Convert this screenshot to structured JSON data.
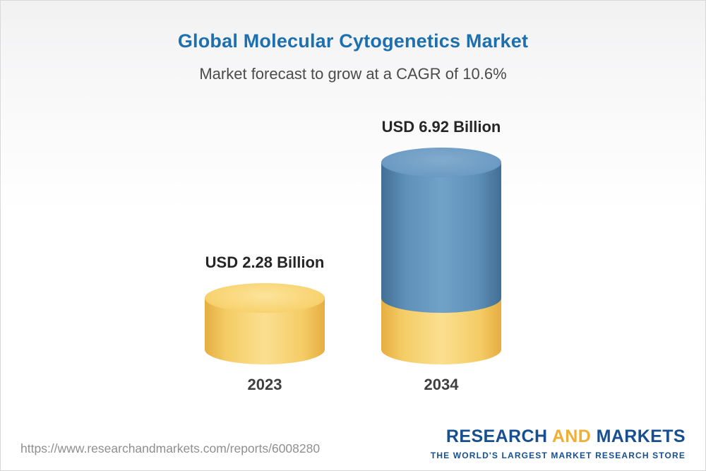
{
  "colors": {
    "title_blue": "#1d6fae",
    "bar_yellow": "#f4cc65",
    "bar_blue": "#5e90b8",
    "logo_blue": "#174f8f",
    "logo_gold": "#efaf36"
  },
  "chart_data": {
    "type": "bar",
    "variant": "3d-cylinder",
    "title": "Global Molecular Cytogenetics Market",
    "subtitle": "Market forecast to grow at a CAGR of 10.6%",
    "cagr_percent": 10.6,
    "unit": "USD Billion",
    "categories": [
      "2023",
      "2034"
    ],
    "values": [
      2.28,
      6.92
    ],
    "value_labels": [
      "USD 2.28 Billion",
      "USD 6.92 Billion"
    ],
    "legend": "none",
    "axes": "none",
    "stacking_hint": "2034 cylinder shows 2023 base value in yellow with growth portion in blue on top"
  },
  "footer": {
    "url": "https://www.researchandmarkets.com/reports/6008280",
    "logo": {
      "word1": "RESEARCH",
      "word2": "AND",
      "word3": "MARKETS",
      "tagline": "THE WORLD'S LARGEST MARKET RESEARCH STORE"
    }
  }
}
